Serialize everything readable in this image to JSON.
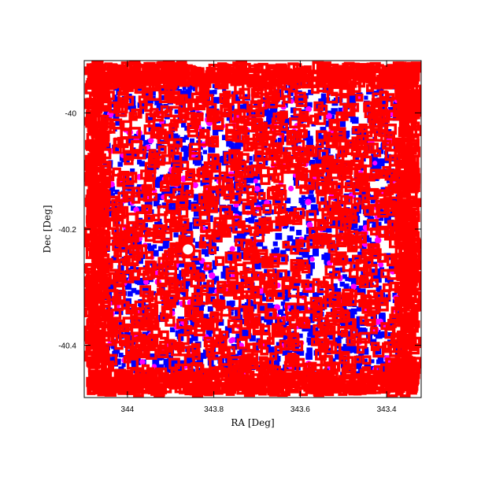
{
  "chart_data": {
    "type": "scatter",
    "title": "",
    "xlabel": "RA [Deg]",
    "ylabel": "Dec [Deg]",
    "xlim": [
      344.1,
      343.32
    ],
    "ylim": [
      -40.49,
      -39.91
    ],
    "x_inverted": true,
    "x_ticks": [
      344.0,
      343.8,
      343.6,
      343.4
    ],
    "x_tick_labels": [
      "344",
      "343.8",
      "343.6",
      "343.4"
    ],
    "y_ticks": [
      -40.0,
      -40.2,
      -40.4
    ],
    "y_tick_labels": [
      "-40",
      "-40.2",
      "-40.4"
    ],
    "grid": false,
    "legend": "none",
    "field": {
      "ra_min": 343.33,
      "ra_max": 344.09,
      "dec_min": -40.48,
      "dec_max": -39.92
    },
    "series": [
      {
        "marker": "filled-square",
        "color": "#0000ff",
        "density": "dense",
        "region": "inner field"
      },
      {
        "marker": "filled-circle",
        "color": "#ff00ff",
        "density": "sparse",
        "region": "inner field"
      },
      {
        "marker": "open-square",
        "color": "#ff0000",
        "density": "very dense",
        "region": "entire field, densest at edges"
      }
    ],
    "annotations": [
      {
        "marker": "open-circle",
        "color": "#ff0000",
        "ra": 343.86,
        "dec": -40.235
      }
    ]
  }
}
